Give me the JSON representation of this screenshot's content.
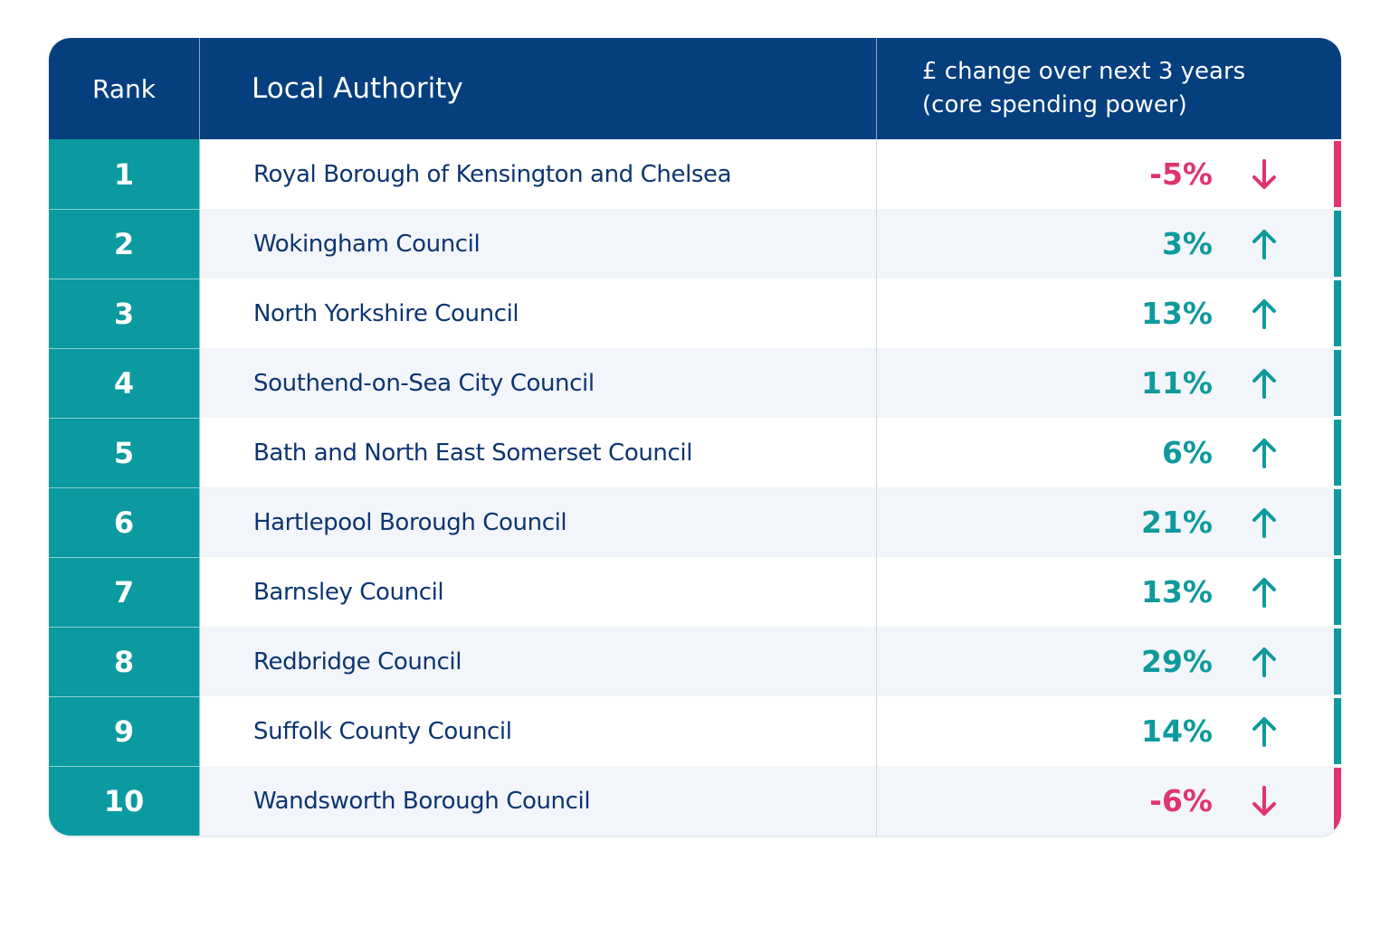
{
  "colors": {
    "header_bg": "#063f7e",
    "rank_bg": "#0a9a9f",
    "text_primary": "#0b3572",
    "positive": "#0e9a9c",
    "negative": "#e03470"
  },
  "table": {
    "headers": {
      "rank": "Rank",
      "authority": "Local Authority",
      "change_line1": "£ change over next 3 years",
      "change_line2": "(core spending power)"
    },
    "rows": [
      {
        "rank": "1",
        "authority": "Royal Borough of Kensington and Chelsea",
        "change": "-5%",
        "direction": "down"
      },
      {
        "rank": "2",
        "authority": "Wokingham Council",
        "change": "3%",
        "direction": "up"
      },
      {
        "rank": "3",
        "authority": "North Yorkshire Council",
        "change": "13%",
        "direction": "up"
      },
      {
        "rank": "4",
        "authority": "Southend-on-Sea City Council",
        "change": "11%",
        "direction": "up"
      },
      {
        "rank": "5",
        "authority": "Bath and North East Somerset Council",
        "change": "6%",
        "direction": "up"
      },
      {
        "rank": "6",
        "authority": "Hartlepool Borough Council",
        "change": "21%",
        "direction": "up"
      },
      {
        "rank": "7",
        "authority": "Barnsley Council",
        "change": "13%",
        "direction": "up"
      },
      {
        "rank": "8",
        "authority": "Redbridge Council",
        "change": "29%",
        "direction": "up"
      },
      {
        "rank": "9",
        "authority": "Suffolk County Council",
        "change": "14%",
        "direction": "up"
      },
      {
        "rank": "10",
        "authority": "Wandsworth Borough Council",
        "change": "-6%",
        "direction": "down"
      }
    ]
  },
  "chart_data": {
    "type": "table",
    "columns": [
      "Rank",
      "Local Authority",
      "£ change over next 3 years (core spending power)"
    ],
    "rows": [
      [
        1,
        "Royal Borough of Kensington and Chelsea",
        -5
      ],
      [
        2,
        "Wokingham Council",
        3
      ],
      [
        3,
        "North Yorkshire Council",
        13
      ],
      [
        4,
        "Southend-on-Sea City Council",
        11
      ],
      [
        5,
        "Bath and North East Somerset Council",
        6
      ],
      [
        6,
        "Hartlepool Borough Council",
        21
      ],
      [
        7,
        "Barnsley Council",
        13
      ],
      [
        8,
        "Redbridge Council",
        29
      ],
      [
        9,
        "Suffolk County Council",
        14
      ],
      [
        10,
        "Wandsworth Borough Council",
        -6
      ]
    ],
    "unit": "%"
  }
}
